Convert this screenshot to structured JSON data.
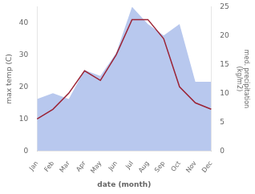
{
  "chart_data": {
    "type": "line",
    "xlabel": "date (month)",
    "ylabel": "max temp (C)",
    "y2label": "med. precipitation\n(kg/m2)",
    "categories": [
      "Jan",
      "Feb",
      "Mar",
      "Apr",
      "May",
      "Jun",
      "Jul",
      "Aug",
      "Sep",
      "Oct",
      "Nov",
      "Dec"
    ],
    "series": [
      {
        "type": "area",
        "color": "#b8c8ee",
        "axis": "y2",
        "values": [
          9,
          10,
          9,
          14,
          13,
          17,
          25,
          22,
          20,
          22,
          12,
          12
        ]
      },
      {
        "type": "line",
        "color": "#9b2335",
        "values": [
          10,
          13,
          18,
          25,
          22,
          30,
          41,
          41,
          35,
          20,
          15,
          13
        ]
      }
    ],
    "ylim": [
      0,
      45
    ],
    "yticks": [
      0,
      10,
      20,
      30,
      40
    ],
    "y2lim": [
      0,
      25
    ],
    "y2ticks": [
      0,
      5,
      10,
      15,
      20,
      25
    ],
    "grid": false
  }
}
